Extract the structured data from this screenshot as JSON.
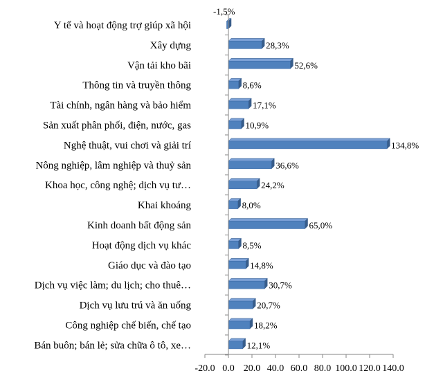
{
  "chart_data": {
    "type": "bar",
    "orientation": "horizontal",
    "style": "3d",
    "bar_color": "#4f81bd",
    "title": "",
    "xlabel": "",
    "ylabel": "",
    "categories": [
      "Y tế và hoạt động trợ giúp xã hội",
      "Xây dựng",
      "Vận tải kho bãi",
      "Thông tin và truyền thông",
      "Tài chính, ngân hàng và bảo hiểm",
      "Sản xuất phân phối, điện, nước, gas",
      "Nghệ thuật, vui chơi và giải trí",
      "Nông nghiệp, lâm nghiệp và thuỷ sản",
      "Khoa học, công nghệ; dịch vụ tư…",
      "Khai khoáng",
      "Kinh doanh bất động sản",
      "Hoạt động dịch vụ khác",
      "Giáo dục và đào tạo",
      "Dịch vụ việc làm; du lịch; cho thuê…",
      "Dịch vụ lưu trú và ăn uống",
      "Công nghiệp chế biến, chế tạo",
      "Bán buôn; bán lẻ; sửa chữa ô tô, xe…"
    ],
    "values": [
      -1.5,
      28.3,
      52.6,
      8.6,
      17.1,
      10.9,
      134.8,
      36.6,
      24.2,
      8.0,
      65.0,
      8.5,
      14.8,
      30.7,
      20.7,
      18.2,
      12.1
    ],
    "value_labels": [
      "-1,5%",
      "28,3%",
      "52,6%",
      "8,6%",
      "17,1%",
      "10,9%",
      "134,8%",
      "36,6%",
      "24,2%",
      "8,0%",
      "65,0%",
      "8,5%",
      "14,8%",
      "30,7%",
      "20,7%",
      "18,2%",
      "12,1%"
    ],
    "xlim": [
      -20,
      140
    ],
    "x_ticks": [
      -20,
      0,
      20,
      40,
      60,
      80,
      100,
      120,
      140
    ],
    "x_tick_labels": [
      "-20.0",
      "0.0",
      "20.0",
      "40.0",
      "60.0",
      "80.0",
      "100.0",
      "120.0",
      "140.0"
    ],
    "grid": false,
    "legend": "none"
  }
}
